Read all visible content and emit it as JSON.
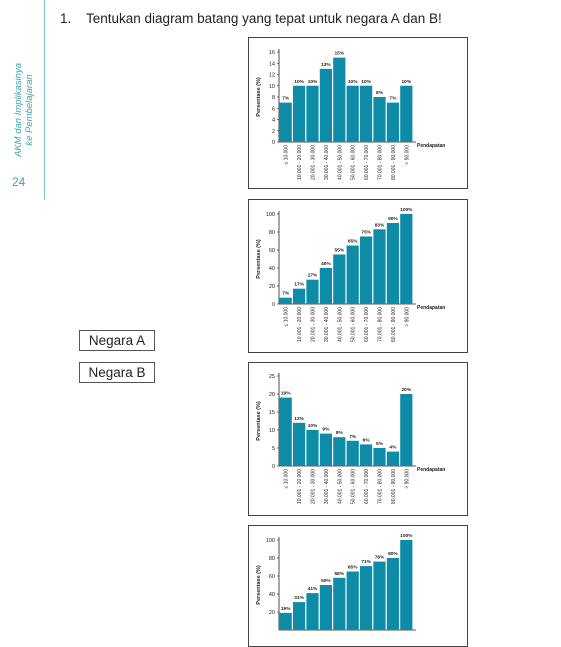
{
  "sidebar": {
    "title": "AKM dan Implikasinya\nke Pembelajaran",
    "page_number": "24"
  },
  "question": {
    "number": "1.",
    "text": "Tentukan diagram batang yang tepat untuk negara A dan B!"
  },
  "options": [
    {
      "label": "Negara A"
    },
    {
      "label": "Negara B"
    }
  ],
  "colors": {
    "bar": "#0e8ca7",
    "accent": "#3fa4ad"
  },
  "chart_data": [
    {
      "type": "bar",
      "ylabel": "Persentase (%)",
      "xlabel": "Pendapatan",
      "ylim": [
        0,
        16
      ],
      "yticks": [
        0,
        2,
        4,
        6,
        8,
        10,
        12,
        14,
        16
      ],
      "categories": [
        "≤ 10.000",
        "10.001 - 20.000",
        "20.001 - 30.000",
        "30.001 - 40.000",
        "40.001 - 50.000",
        "50.001 - 60.000",
        "60.001 - 70.000",
        "70.001 - 80.000",
        "80.001 - 90.000",
        "> 90.000"
      ],
      "values": [
        7,
        10,
        10,
        13,
        15,
        10,
        10,
        8,
        7,
        10
      ],
      "data_labels": [
        "7%",
        "10%",
        "10%",
        "13%",
        "15%",
        "10%",
        "10%",
        "8%",
        "7%",
        "10%"
      ]
    },
    {
      "type": "bar",
      "ylabel": "Persentase (%)",
      "xlabel": "Pendapatan",
      "ylim": [
        0,
        100
      ],
      "yticks": [
        0,
        20,
        40,
        60,
        80,
        100
      ],
      "categories": [
        "≤ 10.000",
        "10.001 - 20.000",
        "20.001 - 30.000",
        "30.001 - 40.000",
        "40.001 - 50.000",
        "50.001 - 60.000",
        "60.001 - 70.000",
        "70.001 - 80.000",
        "80.001 - 90.000",
        "> 90.000"
      ],
      "values": [
        7,
        17,
        27,
        40,
        55,
        65,
        75,
        83,
        90,
        100
      ],
      "data_labels": [
        "7%",
        "17%",
        "27%",
        "40%",
        "55%",
        "65%",
        "75%",
        "83%",
        "90%",
        "100%"
      ]
    },
    {
      "type": "bar",
      "ylabel": "Persentase (%)",
      "xlabel": "Pendapatan",
      "ylim": [
        0,
        25
      ],
      "yticks": [
        0,
        5,
        10,
        15,
        20,
        25
      ],
      "categories": [
        "≤ 10.000",
        "10.001 - 20.000",
        "20.001 - 30.000",
        "30.001 - 40.000",
        "40.001 - 50.000",
        "50.001 - 60.000",
        "60.001 - 70.000",
        "70.001 - 80.000",
        "80.001 - 90.000",
        "> 90.000"
      ],
      "values": [
        19,
        12,
        10,
        9,
        8,
        7,
        6,
        5,
        4,
        20
      ],
      "data_labels": [
        "19%",
        "12%",
        "10%",
        "9%",
        "8%",
        "7%",
        "6%",
        "5%",
        "4%",
        "20%"
      ]
    },
    {
      "type": "bar",
      "ylabel": "Persentase (%)",
      "xlabel": "",
      "ylim": [
        0,
        100
      ],
      "yticks": [
        20,
        40,
        60,
        80,
        100
      ],
      "categories": [
        "",
        "",
        "",
        "",
        "",
        "",
        "",
        "",
        "",
        ""
      ],
      "values": [
        19,
        31,
        41,
        50,
        58,
        65,
        71,
        76,
        80,
        100
      ],
      "data_labels": [
        "19%",
        "31%",
        "41%",
        "50%",
        "58%",
        "65%",
        "71%",
        "76%",
        "80%",
        "100%"
      ]
    }
  ]
}
